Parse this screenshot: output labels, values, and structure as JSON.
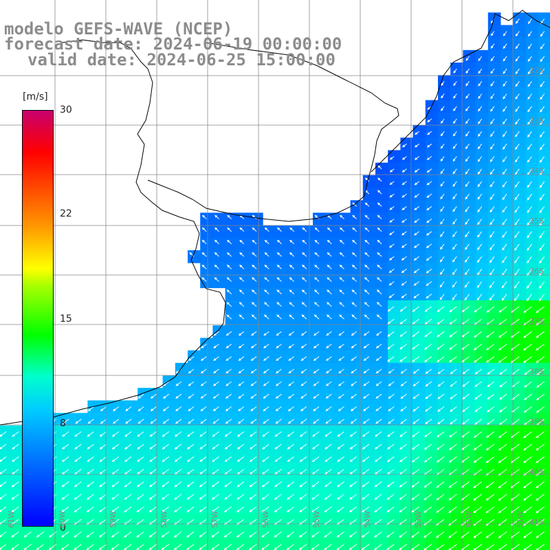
{
  "title": {
    "line1": "modelo GEFS-WAVE (NCEP)",
    "line2": "forecast date: 2024-06-19 00:00:00",
    "line3": "valid date: 2024-06-25 15:00:00"
  },
  "colorbar": {
    "unit": "[m/s]",
    "ticks": [
      "30",
      "22",
      "15",
      "8",
      "0"
    ],
    "min": 0,
    "max": 30
  },
  "map": {
    "land_color": "#ffffff",
    "coastline_color": "#000000",
    "grid_color": "#888888",
    "lat_labels": [
      "32S",
      "33S",
      "34S",
      "35S",
      "36S",
      "37S",
      "38S",
      "39S",
      "40S",
      "41S"
    ],
    "lon_labels": [
      "61W",
      "60W",
      "59W",
      "58W",
      "57W",
      "56W",
      "55W",
      "54W",
      "53W",
      "52W",
      "51W"
    ]
  }
}
